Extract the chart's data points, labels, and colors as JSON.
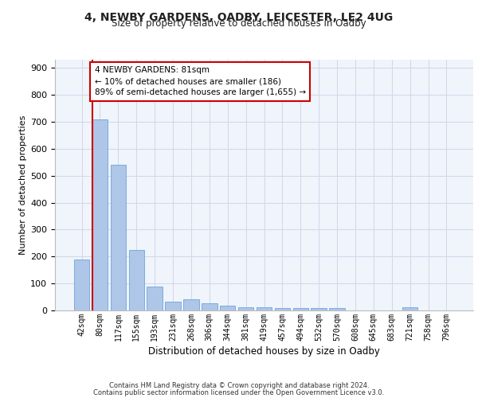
{
  "title1": "4, NEWBY GARDENS, OADBY, LEICESTER, LE2 4UG",
  "title2": "Size of property relative to detached houses in Oadby",
  "xlabel": "Distribution of detached houses by size in Oadby",
  "ylabel": "Number of detached properties",
  "categories": [
    "42sqm",
    "80sqm",
    "117sqm",
    "155sqm",
    "193sqm",
    "231sqm",
    "268sqm",
    "306sqm",
    "344sqm",
    "381sqm",
    "419sqm",
    "457sqm",
    "494sqm",
    "532sqm",
    "570sqm",
    "608sqm",
    "645sqm",
    "683sqm",
    "721sqm",
    "758sqm",
    "796sqm"
  ],
  "values": [
    190,
    710,
    540,
    225,
    90,
    32,
    40,
    27,
    18,
    12,
    12,
    10,
    10,
    8,
    8,
    0,
    0,
    0,
    12,
    0,
    0
  ],
  "bar_color": "#aec6e8",
  "bar_edge_color": "#5b9bd5",
  "marker_line_color": "#cc0000",
  "annotation_text": "4 NEWBY GARDENS: 81sqm\n← 10% of detached houses are smaller (186)\n89% of semi-detached houses are larger (1,655) →",
  "annotation_box_color": "#ffffff",
  "annotation_box_edge": "#cc0000",
  "ylim": [
    0,
    930
  ],
  "yticks": [
    0,
    100,
    200,
    300,
    400,
    500,
    600,
    700,
    800,
    900
  ],
  "footer1": "Contains HM Land Registry data © Crown copyright and database right 2024.",
  "footer2": "Contains public sector information licensed under the Open Government Licence v3.0.",
  "grid_color": "#d0d8e8",
  "background_color": "#f0f4fb"
}
